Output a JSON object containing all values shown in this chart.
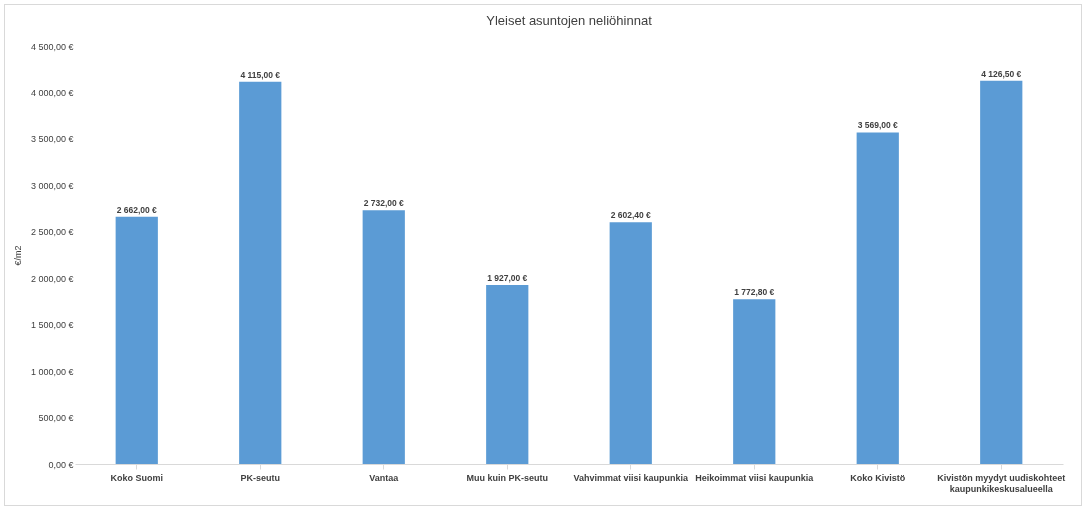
{
  "chart_data": {
    "type": "bar",
    "title": "Yleiset asuntojen neliöhinnat",
    "ylabel": "€/m2",
    "categories": [
      "Koko Suomi",
      "PK-seutu",
      "Vantaa",
      "Muu kuin PK-seutu",
      "Vahvimmat viisi kaupunkia",
      "Heikoimmat viisi kaupunkia",
      "Koko Kivistö",
      "Kivistön myydyt uudiskohteet kaupunkikeskusalueella"
    ],
    "values": [
      2662,
      4115,
      2732,
      1927,
      2602.4,
      1772.8,
      3569,
      4126.5
    ],
    "value_labels": [
      "2 662,00 €",
      "4 115,00 €",
      "2 732,00 €",
      "1 927,00 €",
      "2 602,40 €",
      "1 772,80 €",
      "3 569,00 €",
      "4 126,50 €"
    ],
    "color": "#5b9bd5",
    "ylim": [
      0,
      4500
    ],
    "yticks": [
      {
        "value": 0,
        "label": "0,00 €"
      },
      {
        "value": 500,
        "label": "500,00 €"
      },
      {
        "value": 1000,
        "label": "1 000,00 €"
      },
      {
        "value": 1500,
        "label": "1 500,00 €"
      },
      {
        "value": 2000,
        "label": "2 000,00 €"
      },
      {
        "value": 2500,
        "label": "2 500,00 €"
      },
      {
        "value": 3000,
        "label": "3 000,00 €"
      },
      {
        "value": 3500,
        "label": "3 500,00 €"
      },
      {
        "value": 4000,
        "label": "4 000,00 €"
      },
      {
        "value": 4500,
        "label": "4 500,00 €"
      }
    ],
    "grid": false
  }
}
